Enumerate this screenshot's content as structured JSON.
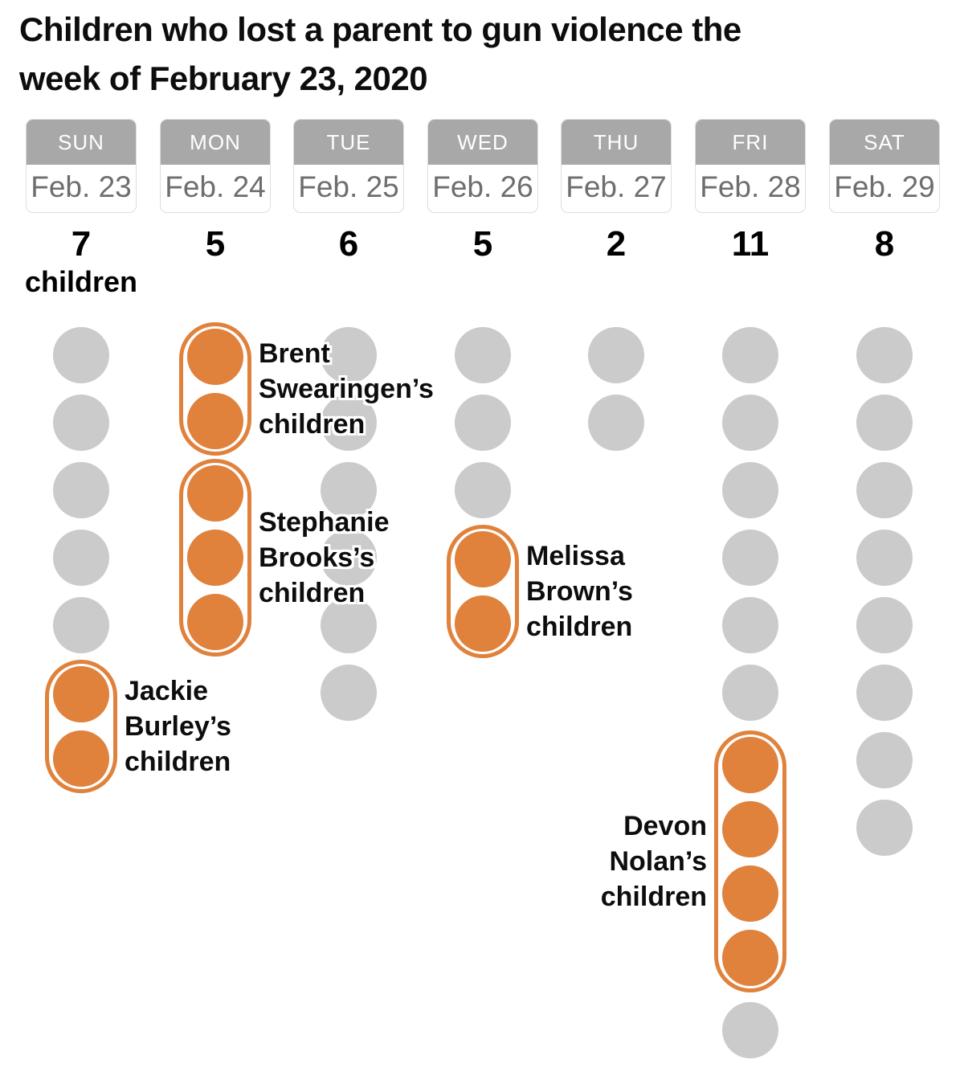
{
  "title": "Children who lost a parent to gun violence the week of February 23, 2020",
  "title_lines": [
    "Children who lost a parent to gun violence the",
    "week of February 23, 2020"
  ],
  "colors": {
    "accent_orange": "#e0813c",
    "dot_gray": "#cbcbcb",
    "day_header_bg": "#a8a8a8",
    "day_header_text": "#ffffff",
    "date_text": "#6e6e6e",
    "label_text": "#0d0d0d"
  },
  "chart_data": {
    "type": "pictogram",
    "title": "Children who lost a parent to gun violence the week of February 23, 2020",
    "unit": "children",
    "categories": [
      "SUN",
      "MON",
      "TUE",
      "WED",
      "THU",
      "FRI",
      "SAT"
    ],
    "dates": [
      "Feb. 23",
      "Feb. 24",
      "Feb. 25",
      "Feb. 26",
      "Feb. 27",
      "Feb. 28",
      "Feb. 29"
    ],
    "values": [
      7,
      5,
      6,
      5,
      2,
      11,
      8
    ],
    "highlighted_groups": [
      {
        "day": "SUN",
        "size": 2,
        "label": "Jackie Burley’s children"
      },
      {
        "day": "MON",
        "size": 2,
        "label": "Brent Swearingen’s children"
      },
      {
        "day": "MON",
        "size": 3,
        "label": "Stephanie Brooks’s children"
      },
      {
        "day": "WED",
        "size": 2,
        "label": "Melissa Brown’s children"
      },
      {
        "day": "FRI",
        "size": 4,
        "label": "Devon Nolan’s children"
      }
    ],
    "columns": [
      {
        "day": "SUN",
        "date": "Feb. 23",
        "count": "7",
        "count_unit": "children",
        "slots": [
          {
            "kind": "plain",
            "n": 5
          },
          {
            "kind": "group",
            "n": 2,
            "label_side": "right",
            "label_lines": [
              "Jackie",
              "Burley’s",
              "children"
            ]
          }
        ]
      },
      {
        "day": "MON",
        "date": "Feb. 24",
        "count": "5",
        "count_unit": "",
        "slots": [
          {
            "kind": "group",
            "n": 2,
            "label_side": "right",
            "label_lines": [
              "Brent",
              "Swearingen’s",
              "children"
            ]
          },
          {
            "kind": "group",
            "n": 3,
            "label_side": "right",
            "label_lines": [
              "Stephanie",
              "Brooks’s",
              "children"
            ]
          }
        ]
      },
      {
        "day": "TUE",
        "date": "Feb. 25",
        "count": "6",
        "count_unit": "",
        "slots": [
          {
            "kind": "plain",
            "n": 6
          }
        ]
      },
      {
        "day": "WED",
        "date": "Feb. 26",
        "count": "5",
        "count_unit": "",
        "slots": [
          {
            "kind": "plain",
            "n": 3
          },
          {
            "kind": "group",
            "n": 2,
            "label_side": "right",
            "label_lines": [
              "Melissa",
              "Brown’s",
              "children"
            ]
          }
        ]
      },
      {
        "day": "THU",
        "date": "Feb. 27",
        "count": "2",
        "count_unit": "",
        "slots": [
          {
            "kind": "plain",
            "n": 2
          }
        ]
      },
      {
        "day": "FRI",
        "date": "Feb. 28",
        "count": "11",
        "count_unit": "",
        "slots": [
          {
            "kind": "plain",
            "n": 6
          },
          {
            "kind": "group",
            "n": 4,
            "label_side": "left",
            "label_lines": [
              "Devon",
              "Nolan’s",
              "children"
            ]
          },
          {
            "kind": "plain",
            "n": 1
          }
        ]
      },
      {
        "day": "SAT",
        "date": "Feb. 29",
        "count": "8",
        "count_unit": "",
        "slots": [
          {
            "kind": "plain",
            "n": 8
          }
        ]
      }
    ]
  }
}
